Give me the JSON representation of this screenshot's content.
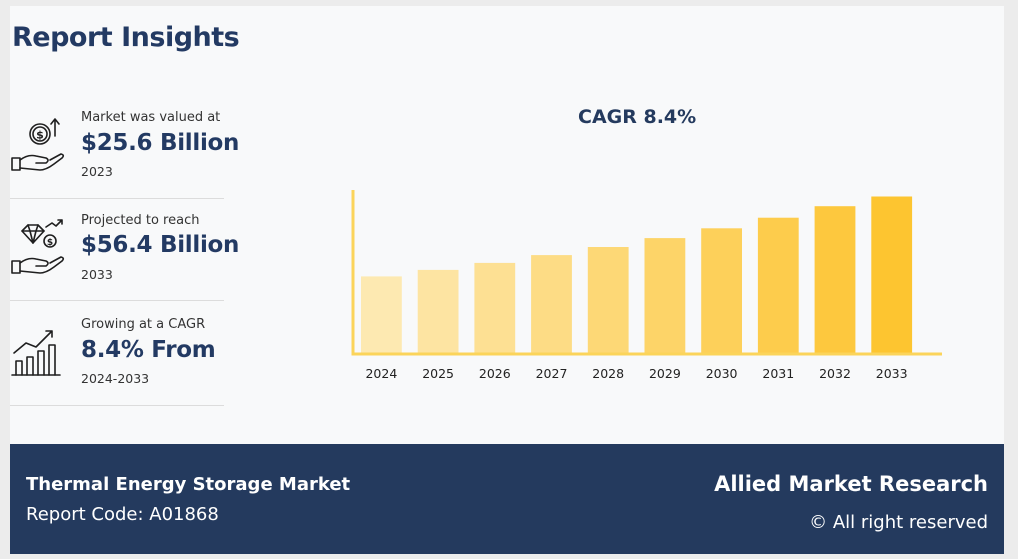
{
  "header": {
    "title": "Report Insights"
  },
  "stats": [
    {
      "icon": "money-in-hand-icon",
      "caption": "Market was valued at",
      "value": "$25.6 Billion",
      "period": "2023"
    },
    {
      "icon": "diamond-coin-hand-icon",
      "caption": "Projected to reach",
      "value": "$56.4 Billion",
      "period": "2033"
    },
    {
      "icon": "growth-bar-chart-icon",
      "caption": "Growing at a CAGR",
      "value": "8.4% From",
      "period": "2024-2033"
    }
  ],
  "chart_title": "CAGR 8.4%",
  "chart_data": {
    "type": "bar",
    "categories": [
      "2024",
      "2025",
      "2026",
      "2027",
      "2028",
      "2029",
      "2030",
      "2031",
      "2032",
      "2033"
    ],
    "values": [
      27.8,
      30.1,
      32.6,
      35.4,
      38.3,
      41.5,
      45.0,
      48.8,
      52.9,
      56.4
    ],
    "title": "CAGR 8.4%",
    "xlabel": "",
    "ylabel": "",
    "ylim": [
      0,
      58
    ],
    "grid": false,
    "colors": [
      "#fde9b1",
      "#fde4a2",
      "#fde093",
      "#fddc85",
      "#fdd876",
      "#fdd468",
      "#fdd05a",
      "#fdcc4c",
      "#fdc83e",
      "#fdc530"
    ],
    "axis_color": "#fbd45a"
  },
  "footer": {
    "market_name": "Thermal Energy Storage Market",
    "report_code": "Report Code: A01868",
    "brand": "Allied Market Research",
    "rights": "© All right reserved"
  }
}
